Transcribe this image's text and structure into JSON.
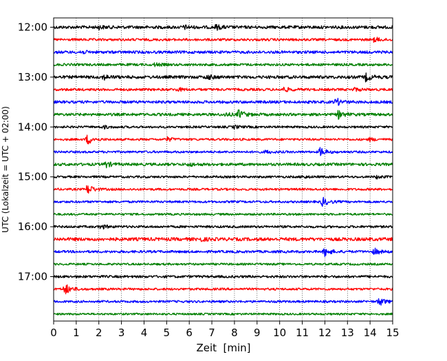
{
  "chart_data": {
    "type": "line",
    "subtype": "helicorder",
    "title": "",
    "xlabel": "Zeit  [min]",
    "ylabel": "UTC (Lokalzeit = UTC + 02:00)",
    "xlim": [
      0,
      15
    ],
    "x_ticks": [
      "0",
      "1",
      "2",
      "3",
      "4",
      "5",
      "6",
      "7",
      "8",
      "9",
      "10",
      "11",
      "12",
      "13",
      "14",
      "15"
    ],
    "y_ticks": [
      "12:00",
      "13:00",
      "14:00",
      "15:00",
      "16:00",
      "17:00"
    ],
    "row_interval_minutes": 15,
    "start_time": "12:00",
    "colors": [
      "#000000",
      "#ff0000",
      "#0000ff",
      "#007f00"
    ],
    "grid": {
      "x": "dotted vertical at each minute",
      "y": "none"
    },
    "legend": "none",
    "rows": [
      {
        "time": "12:00",
        "color": "#000000",
        "noise": 2.2,
        "events": [
          {
            "t": 7.2,
            "amp": 3
          },
          {
            "t": 2.0,
            "amp": 2
          },
          {
            "t": 5.8,
            "amp": 2
          }
        ]
      },
      {
        "time": "12:15",
        "color": "#ff0000",
        "noise": 1.8,
        "events": [
          {
            "t": 14.2,
            "amp": 3
          }
        ]
      },
      {
        "time": "12:30",
        "color": "#0000ff",
        "noise": 2.0,
        "events": [
          {
            "t": 1.2,
            "amp": 2
          }
        ]
      },
      {
        "time": "12:45",
        "color": "#007f00",
        "noise": 1.8,
        "events": [
          {
            "t": 4.5,
            "amp": 2
          }
        ]
      },
      {
        "time": "13:00",
        "color": "#000000",
        "noise": 2.2,
        "events": [
          {
            "t": 2.2,
            "amp": 3
          },
          {
            "t": 6.8,
            "amp": 3
          },
          {
            "t": 13.8,
            "amp": 5
          }
        ]
      },
      {
        "time": "13:15",
        "color": "#ff0000",
        "noise": 1.8,
        "events": [
          {
            "t": 5.5,
            "amp": 2
          },
          {
            "t": 10.2,
            "amp": 3
          },
          {
            "t": 13.3,
            "amp": 2
          }
        ]
      },
      {
        "time": "13:30",
        "color": "#0000ff",
        "noise": 2.0,
        "events": [
          {
            "t": 12.5,
            "amp": 5
          }
        ]
      },
      {
        "time": "13:45",
        "color": "#007f00",
        "noise": 2.0,
        "events": [
          {
            "t": 8.2,
            "amp": 6
          },
          {
            "t": 12.6,
            "amp": 5
          },
          {
            "t": 7.6,
            "amp": 2
          }
        ]
      },
      {
        "time": "14:00",
        "color": "#000000",
        "noise": 1.6,
        "events": [
          {
            "t": 2.2,
            "amp": 2
          },
          {
            "t": 8.0,
            "amp": 2
          }
        ]
      },
      {
        "time": "14:15",
        "color": "#ff0000",
        "noise": 1.6,
        "events": [
          {
            "t": 1.5,
            "amp": 7
          },
          {
            "t": 5.0,
            "amp": 3
          },
          {
            "t": 14.0,
            "amp": 2
          }
        ]
      },
      {
        "time": "14:30",
        "color": "#0000ff",
        "noise": 1.6,
        "events": [
          {
            "t": 11.8,
            "amp": 6
          },
          {
            "t": 9.4,
            "amp": 2
          }
        ]
      },
      {
        "time": "14:45",
        "color": "#007f00",
        "noise": 2.0,
        "events": [
          {
            "t": 2.3,
            "amp": 4
          },
          {
            "t": 6.0,
            "amp": 2
          }
        ]
      },
      {
        "time": "15:00",
        "color": "#000000",
        "noise": 1.6,
        "events": [
          {
            "t": 11.0,
            "amp": 2
          },
          {
            "t": 14.3,
            "amp": 2
          }
        ]
      },
      {
        "time": "15:15",
        "color": "#ff0000",
        "noise": 1.6,
        "events": [
          {
            "t": 1.5,
            "amp": 7
          }
        ]
      },
      {
        "time": "15:30",
        "color": "#0000ff",
        "noise": 1.6,
        "events": [
          {
            "t": 11.9,
            "amp": 6
          }
        ]
      },
      {
        "time": "15:45",
        "color": "#007f00",
        "noise": 1.5,
        "events": []
      },
      {
        "time": "16:00",
        "color": "#000000",
        "noise": 1.7,
        "events": [
          {
            "t": 2.1,
            "amp": 3
          }
        ]
      },
      {
        "time": "16:15",
        "color": "#ff0000",
        "noise": 2.4,
        "events": [
          {
            "t": 6.5,
            "amp": 2
          }
        ]
      },
      {
        "time": "16:30",
        "color": "#0000ff",
        "noise": 1.8,
        "events": [
          {
            "t": 12.0,
            "amp": 6
          },
          {
            "t": 14.2,
            "amp": 4
          }
        ]
      },
      {
        "time": "16:45",
        "color": "#007f00",
        "noise": 1.5,
        "events": []
      },
      {
        "time": "17:00",
        "color": "#000000",
        "noise": 1.8,
        "events": []
      },
      {
        "time": "17:15",
        "color": "#ff0000",
        "noise": 1.6,
        "events": [
          {
            "t": 0.5,
            "amp": 8
          }
        ]
      },
      {
        "time": "17:30",
        "color": "#0000ff",
        "noise": 1.6,
        "events": [
          {
            "t": 14.4,
            "amp": 6
          }
        ]
      },
      {
        "time": "17:45",
        "color": "#007f00",
        "noise": 1.4,
        "events": []
      }
    ]
  }
}
